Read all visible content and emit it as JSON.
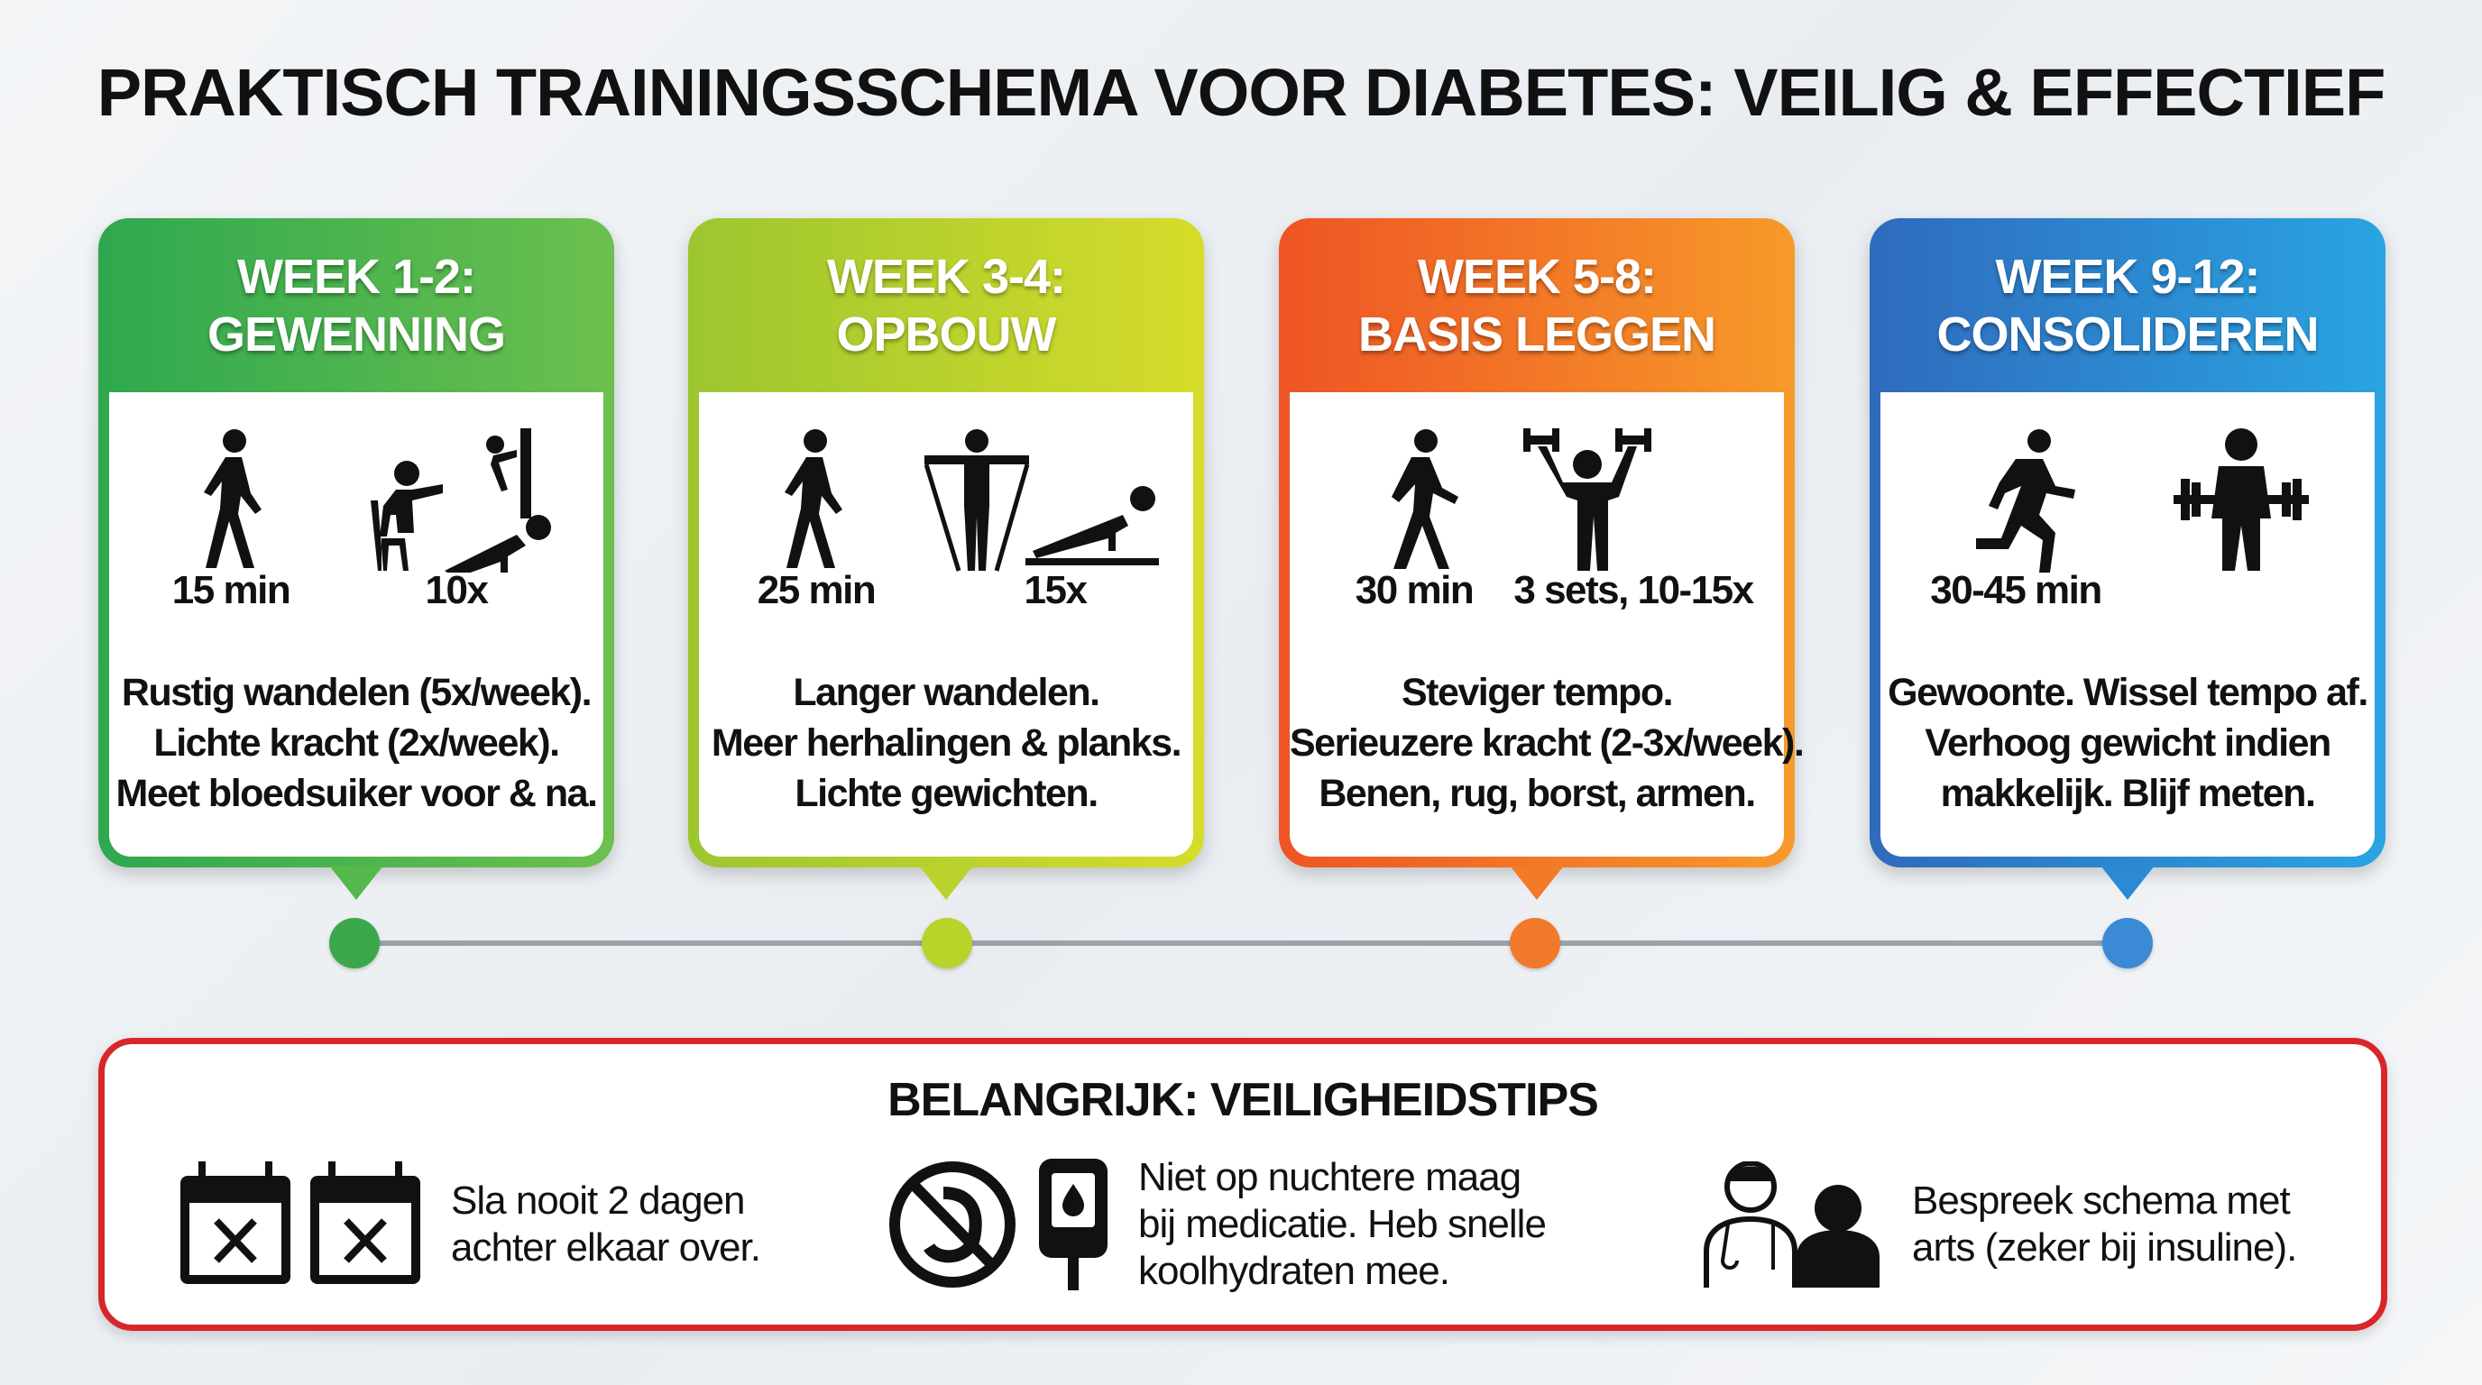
{
  "title": "PRAKTISCH TRAININGSSCHEMA VOOR DIABETES: VEILIG & EFFECTIEF",
  "phases": [
    {
      "header_line1": "WEEK 1-2:",
      "header_line2": "GEWENNING",
      "color_start": "#2ea84f",
      "color_end": "#6cc04e",
      "dot_color": "#3aa84a",
      "icons": [
        "walking-person-icon",
        "chair-squat-wall-pushup-icon"
      ],
      "qty1": "15 min",
      "qty2": "10x",
      "lines": [
        "Rustig wandelen (5x/week).",
        "Lichte kracht (2x/week).",
        "Meet bloedsuiker voor & na."
      ]
    },
    {
      "header_line1": "WEEK 3-4:",
      "header_line2": "OPBOUW",
      "color_start": "#9cc630",
      "color_end": "#d6dc2a",
      "dot_color": "#b8d42a",
      "icons": [
        "walking-person-icon",
        "resistance-band-plank-icon"
      ],
      "qty1": "25 min",
      "qty2": "15x",
      "lines": [
        "Langer wandelen.",
        "Meer herhalingen & planks.",
        "Lichte gewichten."
      ]
    },
    {
      "header_line1": "WEEK 5-8:",
      "header_line2": "BASIS LEGGEN",
      "color_start": "#ee5424",
      "color_end": "#f79a2a",
      "dot_color": "#f07a2a",
      "icons": [
        "brisk-walking-icon",
        "dumbbell-press-icon"
      ],
      "qty1": "30 min",
      "qty2": "3 sets, 10-15x",
      "lines": [
        "Steviger tempo.",
        "Serieuzere kracht (2-3x/week).",
        "Benen, rug, borst, armen."
      ]
    },
    {
      "header_line1": "WEEK 9-12:",
      "header_line2": "CONSOLIDEREN",
      "color_start": "#2f6bbd",
      "color_end": "#2aa4e2",
      "dot_color": "#3a8ad6",
      "icons": [
        "running-person-icon",
        "barbell-lift-icon"
      ],
      "qty1": "30-45 min",
      "qty2": "",
      "lines": [
        "Gewoonte. Wissel tempo af.",
        "Verhoog gewicht indien",
        "makkelijk. Blijf meten."
      ]
    }
  ],
  "safety": {
    "title": "BELANGRIJK: VEILIGHEIDSTIPS",
    "border_color": "#d8262b",
    "tips": [
      {
        "icons": [
          "calendar-x-icon",
          "calendar-x-icon"
        ],
        "lines": [
          "Sla nooit 2 dagen",
          "achter elkaar over."
        ]
      },
      {
        "icons": [
          "no-empty-stomach-icon",
          "glucose-meter-icon"
        ],
        "lines": [
          "Niet op nuchtere maag",
          "bij medicatie. Heb snelle",
          "koolhydraten mee."
        ]
      },
      {
        "icons": [
          "doctor-patient-icon"
        ],
        "lines": [
          "Bespreek schema met",
          "arts (zeker bij insuline)."
        ]
      }
    ]
  }
}
